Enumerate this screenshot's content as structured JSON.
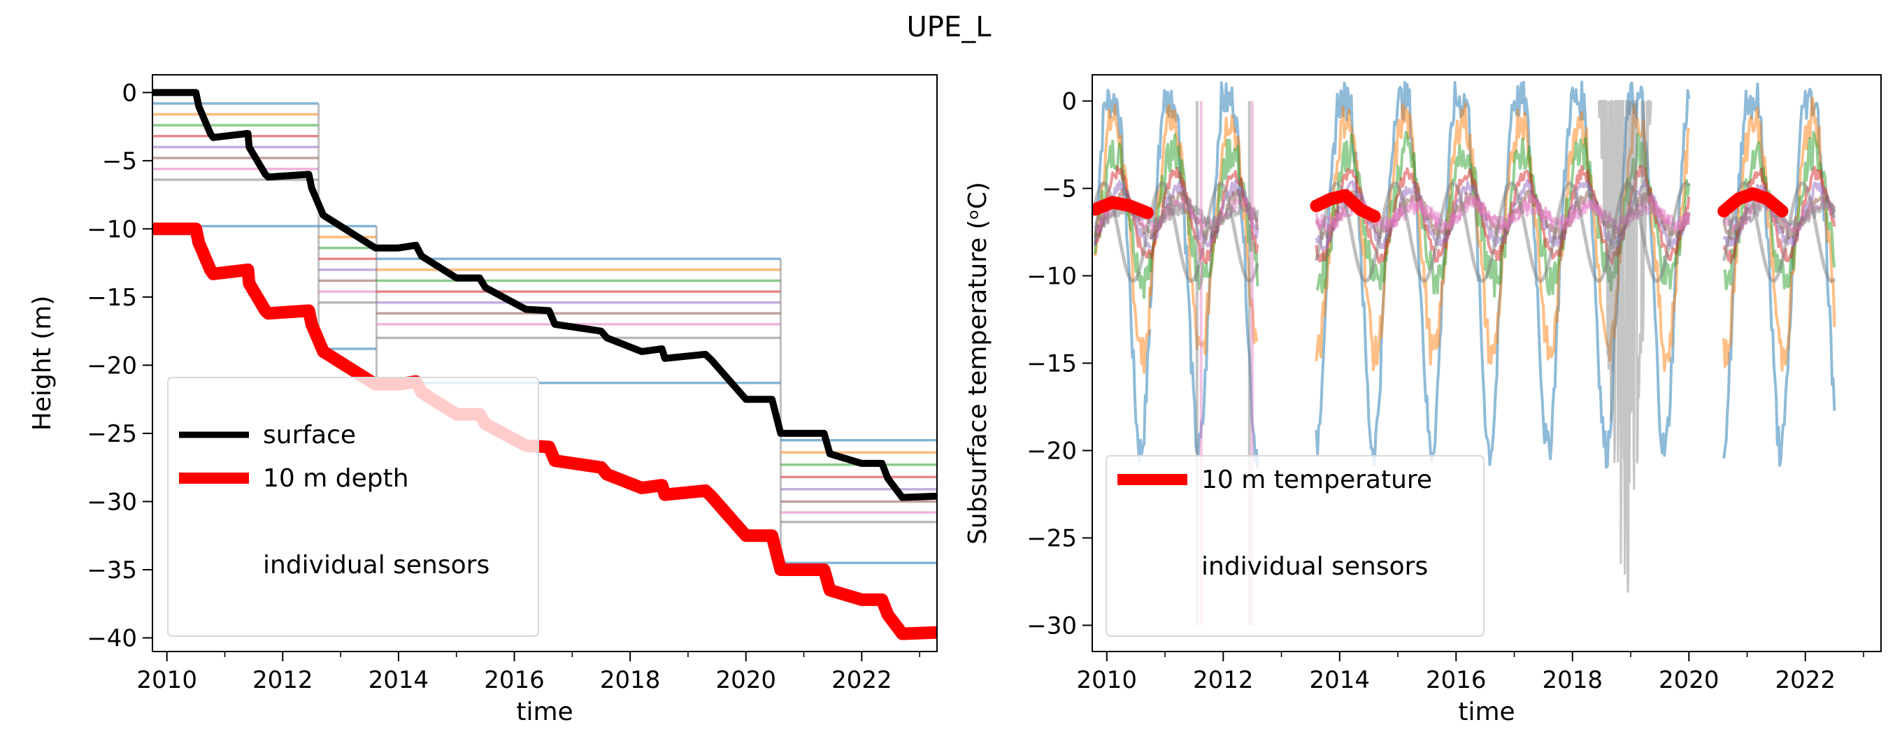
{
  "figure": {
    "title": "UPE_L"
  },
  "palette": [
    "#1f77b4",
    "#ff7f0e",
    "#2ca02c",
    "#d62728",
    "#9467bd",
    "#8c564b",
    "#e377c2",
    "#7f7f7f"
  ],
  "chart_data": [
    {
      "type": "line",
      "xlabel": "time",
      "ylabel": "Height (m)",
      "xlim": [
        2009.75,
        2023.3
      ],
      "ylim": [
        -41,
        1.3
      ],
      "xticks": [
        2010,
        2012,
        2014,
        2016,
        2018,
        2020,
        2022
      ],
      "yticks": [
        0,
        -5,
        -10,
        -15,
        -20,
        -25,
        -30,
        -35,
        -40
      ],
      "legend": {
        "position": "lower-left",
        "entries": [
          {
            "label": "surface",
            "color": "#000000"
          },
          {
            "label": "10 m depth",
            "color": "#ff0000"
          },
          {
            "label": "individual sensors",
            "color": ""
          }
        ]
      },
      "series": [
        {
          "name": "surface",
          "color": "#000000",
          "x": [
            2009.75,
            2010.5,
            2010.55,
            2010.75,
            2010.8,
            2011.4,
            2011.42,
            2011.7,
            2011.75,
            2012.45,
            2012.5,
            2012.7,
            2013.6,
            2014.0,
            2014.3,
            2014.4,
            2015.0,
            2015.4,
            2015.5,
            2016.2,
            2016.6,
            2016.7,
            2017.5,
            2017.6,
            2018.2,
            2018.55,
            2018.6,
            2019.3,
            2019.4,
            2020.0,
            2020.45,
            2020.6,
            2021.35,
            2021.45,
            2022.0,
            2022.35,
            2022.45,
            2022.7,
            2023.3
          ],
          "y": [
            0,
            0,
            -1,
            -3,
            -3.3,
            -3,
            -4,
            -6,
            -6.2,
            -6,
            -7,
            -9,
            -11.4,
            -11.4,
            -11.2,
            -12,
            -13.6,
            -13.6,
            -14.3,
            -15.9,
            -16,
            -17,
            -17.5,
            -18,
            -19,
            -18.8,
            -19.5,
            -19.2,
            -19.6,
            -22.5,
            -22.5,
            -25,
            -25,
            -26.5,
            -27.2,
            -27.2,
            -28.3,
            -29.7,
            -29.6
          ]
        },
        {
          "name": "10 m depth",
          "color": "#ff0000",
          "x": [
            2009.75,
            2010.5,
            2010.55,
            2010.75,
            2010.8,
            2011.4,
            2011.42,
            2011.7,
            2011.75,
            2012.45,
            2012.5,
            2012.7,
            2013.6,
            2014.0,
            2014.3,
            2014.4,
            2015.0,
            2015.4,
            2015.5,
            2016.2,
            2016.6,
            2016.7,
            2017.5,
            2017.6,
            2018.2,
            2018.55,
            2018.6,
            2019.3,
            2019.4,
            2020.0,
            2020.45,
            2020.6,
            2021.35,
            2021.45,
            2022.0,
            2022.35,
            2022.45,
            2022.7,
            2023.3
          ],
          "y": [
            -10,
            -10,
            -11,
            -13,
            -13.3,
            -13,
            -14,
            -16,
            -16.2,
            -16,
            -17,
            -19,
            -21.4,
            -21.4,
            -21.2,
            -22,
            -23.6,
            -23.6,
            -24.3,
            -25.9,
            -26,
            -27,
            -27.5,
            -28,
            -29,
            -28.8,
            -29.5,
            -29.2,
            -29.6,
            -32.5,
            -32.5,
            -35,
            -35,
            -36.5,
            -37.2,
            -37.2,
            -38.3,
            -39.7,
            -39.6
          ]
        }
      ],
      "sensor_installations": [
        {
          "start": 2009.75,
          "end": 2012.62,
          "depths": [
            -0.8,
            -1.6,
            -2.4,
            -3.2,
            -4.0,
            -4.8,
            -5.6,
            -6.4,
            -9.8
          ]
        },
        {
          "start": 2012.62,
          "end": 2013.62,
          "depths": [
            -9.8,
            -10.6,
            -11.4,
            -12.2,
            -13.0,
            -13.8,
            -14.6,
            -15.4,
            -18.8
          ]
        },
        {
          "start": 2013.62,
          "end": 2020.6,
          "depths": [
            -12.2,
            -13.0,
            -13.8,
            -14.6,
            -15.4,
            -16.2,
            -17.0,
            -18.0,
            -21.3
          ]
        },
        {
          "start": 2020.6,
          "end": 2023.3,
          "depths": [
            -25.5,
            -26.4,
            -27.3,
            -28.2,
            -29.1,
            -30.0,
            -30.8,
            -31.5,
            -34.5
          ]
        }
      ]
    },
    {
      "type": "line",
      "xlabel": "time",
      "ylabel": "Subsurface temperature (ᵒC)",
      "xlim": [
        2009.75,
        2023.3
      ],
      "ylim": [
        -31.5,
        1.5
      ],
      "xticks": [
        2010,
        2012,
        2014,
        2016,
        2018,
        2020,
        2022
      ],
      "yticks": [
        0,
        -5,
        -10,
        -15,
        -20,
        -25,
        -30
      ],
      "legend": {
        "position": "lower-left",
        "entries": [
          {
            "label": "10 m temperature",
            "color": "#ff0000"
          },
          {
            "label": "individual sensors",
            "color": ""
          }
        ]
      },
      "ten_m_temperature": [
        {
          "x": [
            2009.8,
            2010.1,
            2010.4,
            2010.7
          ],
          "y": [
            -6.2,
            -5.8,
            -6.0,
            -6.4
          ]
        },
        {
          "x": [
            2013.6,
            2013.85,
            2014.1,
            2014.35,
            2014.6
          ],
          "y": [
            -6.0,
            -5.6,
            -5.4,
            -6.2,
            -6.6
          ]
        },
        {
          "x": [
            2020.6,
            2020.85,
            2021.1,
            2021.35,
            2021.6
          ],
          "y": [
            -6.3,
            -5.6,
            -5.3,
            -5.6,
            -6.3
          ]
        }
      ],
      "sensor_periods": [
        {
          "start": 2009.8,
          "end": 2010.75
        },
        {
          "start": 2010.75,
          "end": 2012.6
        },
        {
          "start": 2013.6,
          "end": 2020.0
        },
        {
          "start": 2020.6,
          "end": 2022.5
        }
      ]
    }
  ]
}
